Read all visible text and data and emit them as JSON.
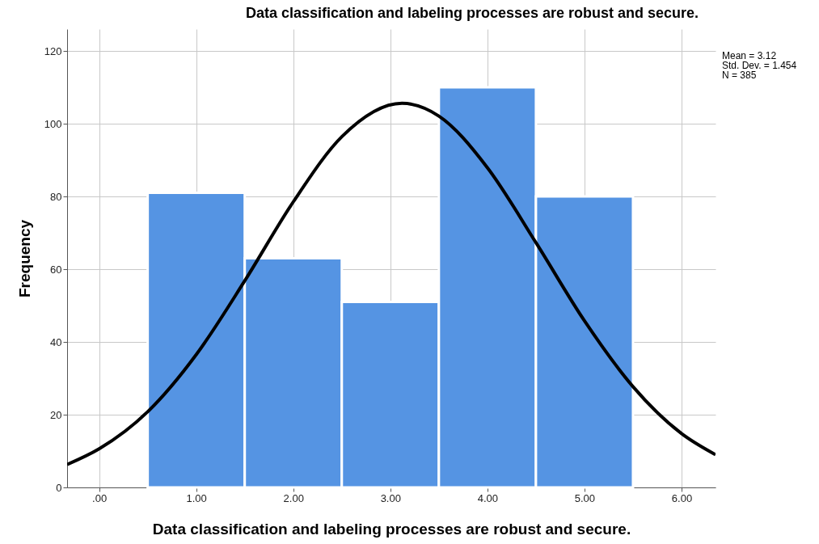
{
  "chart_data": {
    "type": "histogram",
    "title": "Data classification and labeling processes are robust and secure.",
    "xlabel": "Data classification and labeling processes are robust and secure.",
    "ylabel": "Frequency",
    "annotations": [
      "Mean = 3.12",
      "Std. Dev. = 1.454",
      "N = 385"
    ],
    "bins": [
      0.5,
      1.5,
      2.5,
      3.5,
      4.5,
      5.5
    ],
    "series": [
      {
        "type": "histogram",
        "color": "#5594e3",
        "values": [
          81,
          63,
          51,
          110,
          80
        ]
      },
      {
        "type": "line",
        "color": "#000000",
        "x": [
          -0.33,
          0,
          0.5,
          1,
          1.5,
          2,
          2.5,
          3.12,
          3.5,
          4,
          4.5,
          5,
          5.5,
          6,
          6.35
        ],
        "values": [
          6.3,
          10.6,
          20.8,
          36.5,
          56.8,
          78.5,
          96.4,
          105.6,
          102.1,
          87.9,
          67.3,
          45.8,
          27.7,
          14.8,
          9.0
        ]
      }
    ],
    "xlim": [
      -0.33,
      6.35
    ],
    "xticks": [
      {
        "value": 0,
        "label": ".00"
      },
      {
        "value": 1,
        "label": "1.00"
      },
      {
        "value": 2,
        "label": "2.00"
      },
      {
        "value": 3,
        "label": "3.00"
      },
      {
        "value": 4,
        "label": "4.00"
      },
      {
        "value": 5,
        "label": "5.00"
      },
      {
        "value": 6,
        "label": "6.00"
      }
    ],
    "ylim": [
      0,
      126
    ],
    "yticks": [
      0,
      20,
      40,
      60,
      80,
      100,
      120
    ],
    "grid": true
  }
}
